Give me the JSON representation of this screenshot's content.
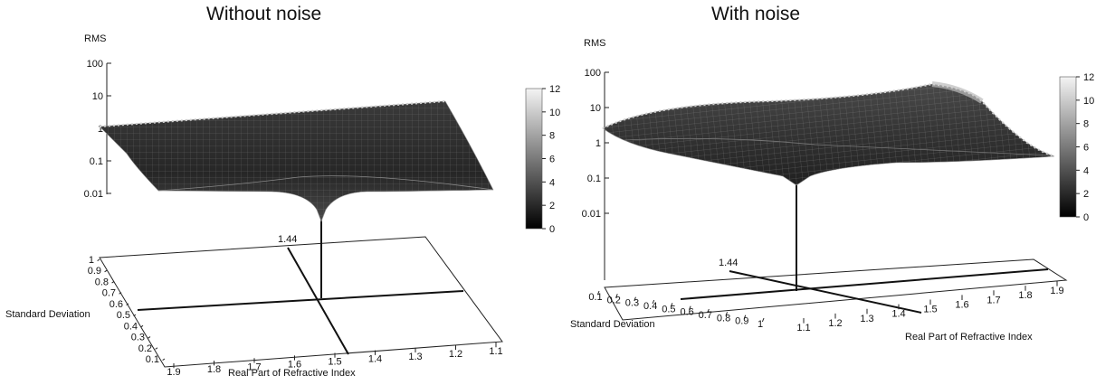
{
  "chart_data": [
    {
      "type": "surface",
      "title": "Without noise",
      "zlabel": "RMS",
      "z_scale": "log",
      "z_ticks": [
        "100",
        "10",
        "1",
        "0.1",
        "0.01"
      ],
      "xlabel": "Real Part of Refractive Index",
      "x_ticks": [
        "1.9",
        "1.8",
        "1.7",
        "1.6",
        "1.5",
        "1.4",
        "1.3",
        "1.2",
        "1.1"
      ],
      "ylabel": "Standard Deviation",
      "y_ticks": [
        "1",
        "0.9",
        "0.8",
        "0.7",
        "0.6",
        "0.5",
        "0.4",
        "0.3",
        "0.2",
        "0.1"
      ],
      "marker_label": "1.44",
      "minimum": {
        "real_index": 1.44,
        "std_dev": 0.5
      },
      "colorbar": {
        "min": 0,
        "max": 12,
        "ticks": [
          "12",
          "10",
          "8",
          "6",
          "4",
          "2",
          "0"
        ]
      }
    },
    {
      "type": "surface",
      "title": "With noise",
      "zlabel": "RMS",
      "z_scale": "log",
      "z_ticks": [
        "100",
        "10",
        "1",
        "0.1",
        "0.01"
      ],
      "xlabel": "Real Part of Refractive Index",
      "x_ticks": [
        "1.1",
        "1.2",
        "1.3",
        "1.4",
        "1.5",
        "1.6",
        "1.7",
        "1.8",
        "1.9"
      ],
      "ylabel": "Standard Deviation",
      "y_ticks": [
        "0.1",
        "0.2",
        "0.3",
        "0.4",
        "0.5",
        "0.6",
        "0.7",
        "0.8",
        "0.9",
        "1"
      ],
      "marker_label": "1.44",
      "minimum": {
        "real_index": 1.44,
        "std_dev": 0.5
      },
      "colorbar": {
        "min": 0,
        "max": 12,
        "ticks": [
          "12",
          "10",
          "8",
          "6",
          "4",
          "2",
          "0"
        ]
      }
    }
  ]
}
